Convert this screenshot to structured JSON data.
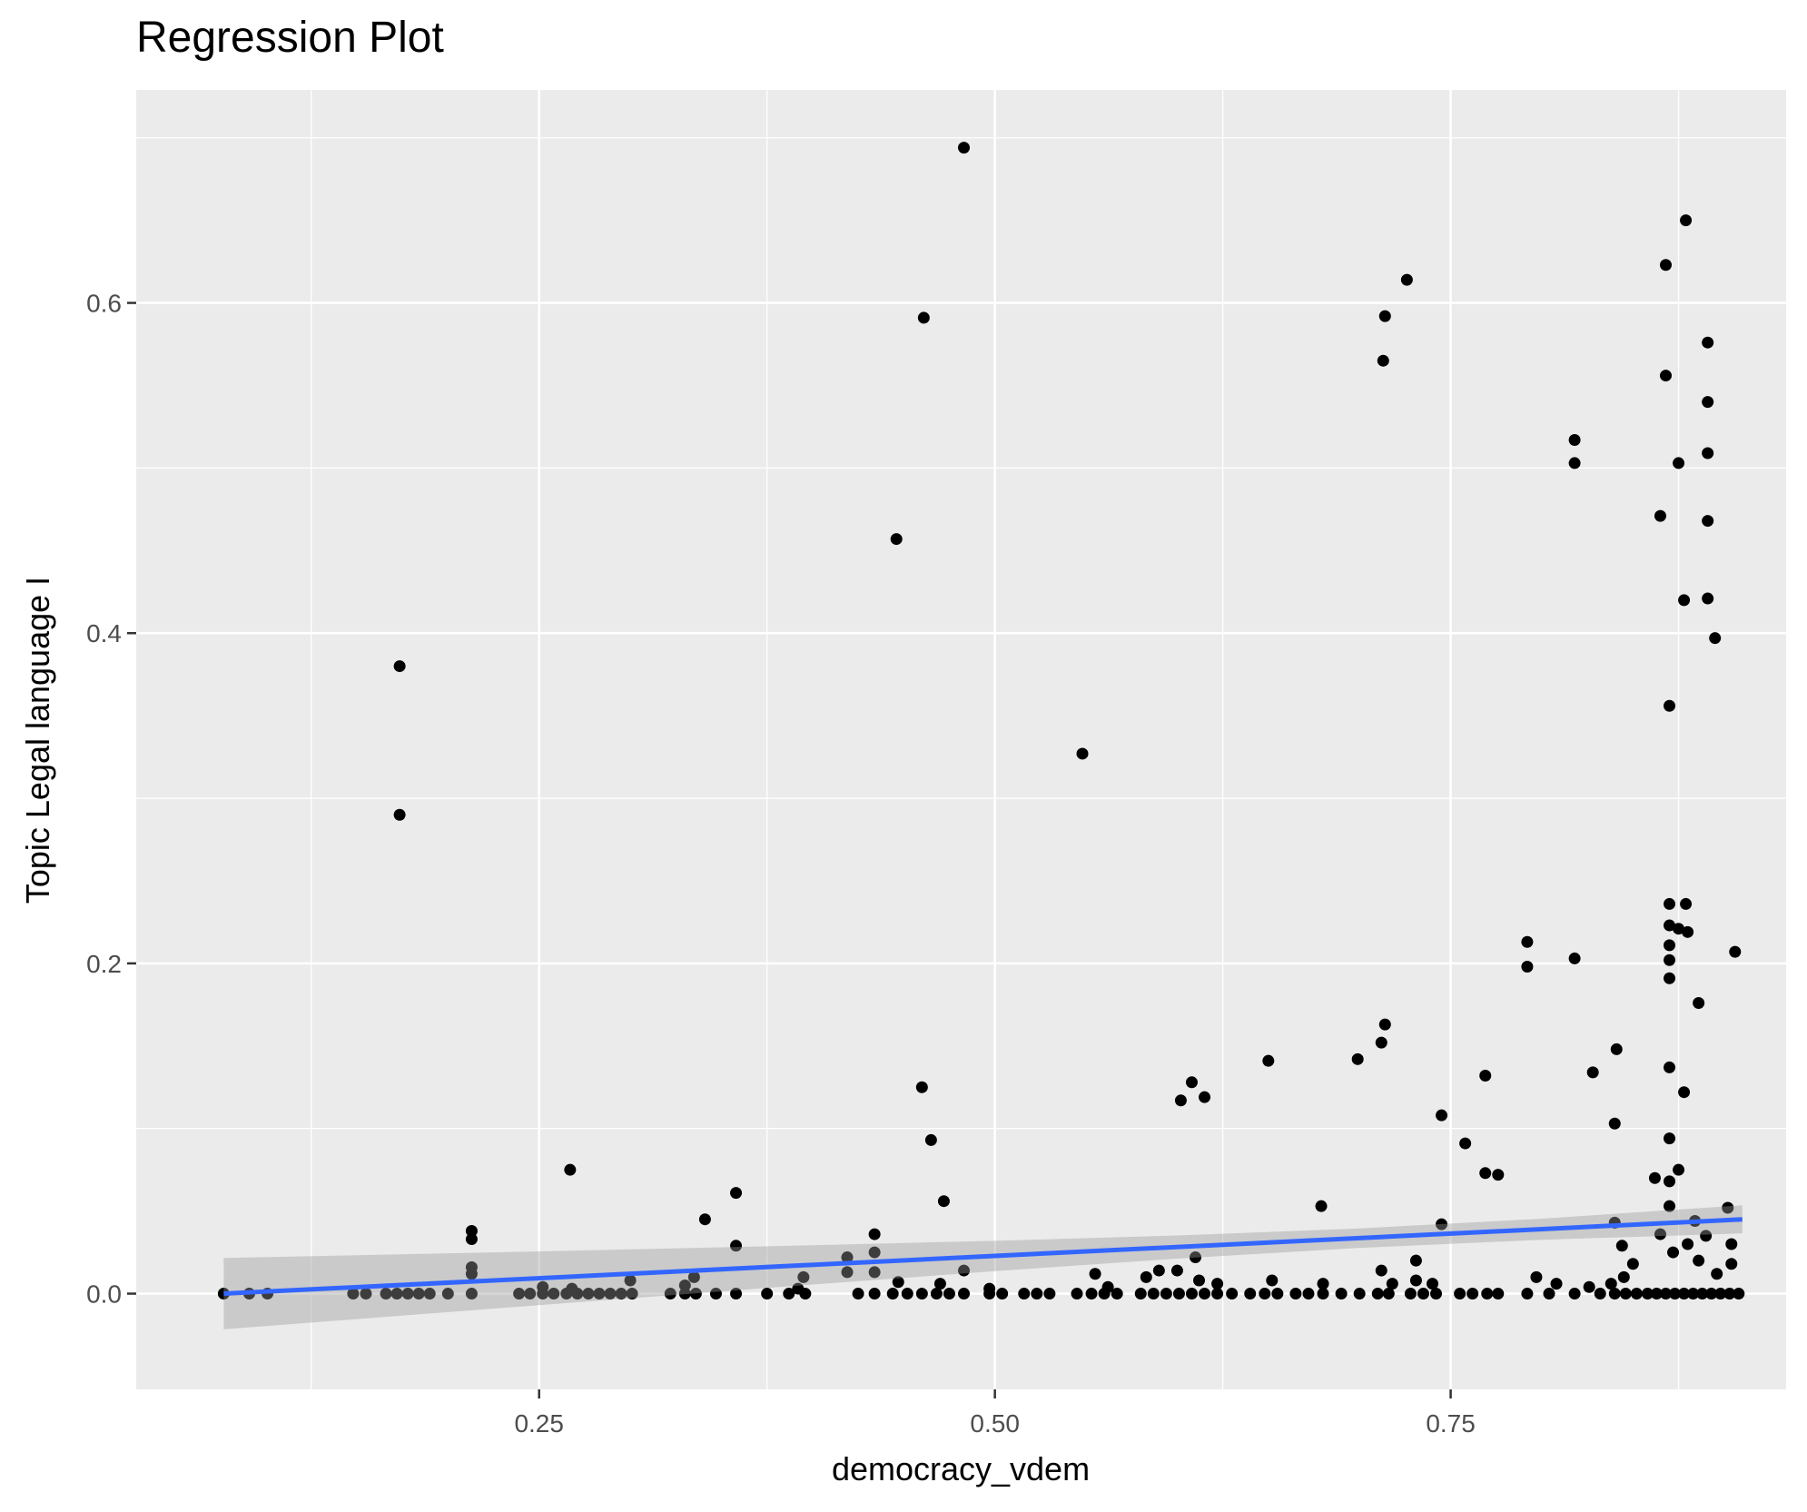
{
  "chart_data": {
    "type": "scatter",
    "title": "Regression Plot",
    "xlabel": "democracy_vdem",
    "ylabel": "Topic Legal language I",
    "xlim": [
      0.029,
      0.934
    ],
    "ylim": [
      -0.058,
      0.729
    ],
    "grid": true,
    "legend": "none",
    "x_ticks": [
      0.25,
      0.5,
      0.75
    ],
    "x_tick_labels": [
      "0.25",
      "0.50",
      "0.75"
    ],
    "y_ticks": [
      0.0,
      0.2,
      0.4,
      0.6
    ],
    "y_tick_labels": [
      "0.0",
      "0.2",
      "0.4",
      "0.6"
    ],
    "colors": {
      "points": "#000000",
      "line": "#3366FF",
      "ribbon": "#999999",
      "panel": "#EBEBEB",
      "grid": "#FFFFFF"
    },
    "points": [
      [
        0.1735,
        0.38
      ],
      [
        0.1735,
        0.29
      ],
      [
        0.483,
        0.694
      ],
      [
        0.461,
        0.591
      ],
      [
        0.446,
        0.457
      ],
      [
        0.548,
        0.327
      ],
      [
        0.46,
        0.125
      ],
      [
        0.465,
        0.093
      ],
      [
        0.472,
        0.056
      ],
      [
        0.483,
        0.014
      ],
      [
        0.267,
        0.075
      ],
      [
        0.213,
        0.038
      ],
      [
        0.213,
        0.033
      ],
      [
        0.213,
        0.016
      ],
      [
        0.213,
        0.012
      ],
      [
        0.341,
        0.045
      ],
      [
        0.358,
        0.061
      ],
      [
        0.358,
        0.029
      ],
      [
        0.395,
        0.01
      ],
      [
        0.419,
        0.022
      ],
      [
        0.419,
        0.013
      ],
      [
        0.434,
        0.036
      ],
      [
        0.434,
        0.025
      ],
      [
        0.434,
        0.013
      ],
      [
        0.447,
        0.007
      ],
      [
        0.47,
        0.006
      ],
      [
        0.3,
        0.008
      ],
      [
        0.33,
        0.005
      ],
      [
        0.335,
        0.01
      ],
      [
        0.602,
        0.117
      ],
      [
        0.608,
        0.128
      ],
      [
        0.615,
        0.119
      ],
      [
        0.65,
        0.141
      ],
      [
        0.679,
        0.053
      ],
      [
        0.699,
        0.142
      ],
      [
        0.713,
        0.565
      ],
      [
        0.714,
        0.592
      ],
      [
        0.726,
        0.614
      ],
      [
        0.714,
        0.163
      ],
      [
        0.712,
        0.152
      ],
      [
        0.745,
        0.108
      ],
      [
        0.758,
        0.091
      ],
      [
        0.769,
        0.132
      ],
      [
        0.769,
        0.073
      ],
      [
        0.776,
        0.072
      ],
      [
        0.745,
        0.042
      ],
      [
        0.792,
        0.213
      ],
      [
        0.792,
        0.198
      ],
      [
        0.818,
        0.517
      ],
      [
        0.818,
        0.503
      ],
      [
        0.818,
        0.203
      ],
      [
        0.828,
        0.134
      ],
      [
        0.841,
        0.148
      ],
      [
        0.84,
        0.103
      ],
      [
        0.84,
        0.043
      ],
      [
        0.844,
        0.029
      ],
      [
        0.862,
        0.07
      ],
      [
        0.865,
        0.471
      ],
      [
        0.868,
        0.623
      ],
      [
        0.868,
        0.556
      ],
      [
        0.87,
        0.356
      ],
      [
        0.87,
        0.236
      ],
      [
        0.87,
        0.223
      ],
      [
        0.87,
        0.211
      ],
      [
        0.87,
        0.202
      ],
      [
        0.87,
        0.191
      ],
      [
        0.87,
        0.137
      ],
      [
        0.87,
        0.094
      ],
      [
        0.87,
        0.068
      ],
      [
        0.87,
        0.053
      ],
      [
        0.879,
        0.65
      ],
      [
        0.875,
        0.503
      ],
      [
        0.878,
        0.42
      ],
      [
        0.879,
        0.236
      ],
      [
        0.88,
        0.219
      ],
      [
        0.875,
        0.221
      ],
      [
        0.878,
        0.122
      ],
      [
        0.875,
        0.075
      ],
      [
        0.886,
        0.176
      ],
      [
        0.891,
        0.576
      ],
      [
        0.891,
        0.54
      ],
      [
        0.891,
        0.509
      ],
      [
        0.891,
        0.468
      ],
      [
        0.891,
        0.421
      ],
      [
        0.895,
        0.397
      ],
      [
        0.906,
        0.207
      ],
      [
        0.902,
        0.052
      ],
      [
        0.884,
        0.044
      ],
      [
        0.89,
        0.035
      ],
      [
        0.88,
        0.03
      ],
      [
        0.865,
        0.036
      ],
      [
        0.872,
        0.025
      ],
      [
        0.886,
        0.02
      ],
      [
        0.896,
        0.012
      ],
      [
        0.904,
        0.03
      ],
      [
        0.904,
        0.018
      ],
      [
        0.85,
        0.018
      ],
      [
        0.845,
        0.01
      ],
      [
        0.838,
        0.006
      ],
      [
        0.826,
        0.004
      ],
      [
        0.797,
        0.01
      ],
      [
        0.808,
        0.006
      ],
      [
        0.731,
        0.02
      ],
      [
        0.731,
        0.008
      ],
      [
        0.712,
        0.014
      ],
      [
        0.718,
        0.006
      ],
      [
        0.74,
        0.006
      ],
      [
        0.68,
        0.006
      ],
      [
        0.652,
        0.008
      ],
      [
        0.6,
        0.014
      ],
      [
        0.61,
        0.022
      ],
      [
        0.612,
        0.008
      ],
      [
        0.622,
        0.006
      ],
      [
        0.583,
        0.01
      ],
      [
        0.59,
        0.014
      ],
      [
        0.555,
        0.012
      ],
      [
        0.562,
        0.004
      ],
      [
        0.497,
        0.003
      ],
      [
        0.392,
        0.003
      ],
      [
        0.252,
        0.004
      ],
      [
        0.268,
        0.003
      ],
      [
        0.077,
        0
      ],
      [
        0.091,
        0
      ],
      [
        0.101,
        0
      ],
      [
        0.148,
        0
      ],
      [
        0.155,
        0
      ],
      [
        0.166,
        0
      ],
      [
        0.172,
        0
      ],
      [
        0.178,
        0
      ],
      [
        0.184,
        0
      ],
      [
        0.19,
        0
      ],
      [
        0.2,
        0
      ],
      [
        0.213,
        0
      ],
      [
        0.239,
        0
      ],
      [
        0.245,
        0
      ],
      [
        0.252,
        0
      ],
      [
        0.258,
        0
      ],
      [
        0.265,
        0
      ],
      [
        0.271,
        0
      ],
      [
        0.277,
        0
      ],
      [
        0.283,
        0
      ],
      [
        0.289,
        0
      ],
      [
        0.295,
        0
      ],
      [
        0.301,
        0
      ],
      [
        0.322,
        0
      ],
      [
        0.33,
        0
      ],
      [
        0.336,
        0
      ],
      [
        0.347,
        0
      ],
      [
        0.358,
        0
      ],
      [
        0.375,
        0
      ],
      [
        0.387,
        0
      ],
      [
        0.396,
        0
      ],
      [
        0.425,
        0
      ],
      [
        0.434,
        0
      ],
      [
        0.444,
        0
      ],
      [
        0.452,
        0
      ],
      [
        0.46,
        0
      ],
      [
        0.468,
        0
      ],
      [
        0.475,
        0
      ],
      [
        0.483,
        0
      ],
      [
        0.497,
        0
      ],
      [
        0.504,
        0
      ],
      [
        0.516,
        0
      ],
      [
        0.523,
        0
      ],
      [
        0.53,
        0
      ],
      [
        0.545,
        0
      ],
      [
        0.553,
        0
      ],
      [
        0.56,
        0
      ],
      [
        0.567,
        0
      ],
      [
        0.58,
        0
      ],
      [
        0.587,
        0
      ],
      [
        0.594,
        0
      ],
      [
        0.601,
        0
      ],
      [
        0.608,
        0
      ],
      [
        0.615,
        0
      ],
      [
        0.622,
        0
      ],
      [
        0.63,
        0
      ],
      [
        0.64,
        0
      ],
      [
        0.648,
        0
      ],
      [
        0.655,
        0
      ],
      [
        0.665,
        0
      ],
      [
        0.672,
        0
      ],
      [
        0.68,
        0
      ],
      [
        0.69,
        0
      ],
      [
        0.7,
        0
      ],
      [
        0.71,
        0
      ],
      [
        0.716,
        0
      ],
      [
        0.728,
        0
      ],
      [
        0.735,
        0
      ],
      [
        0.742,
        0
      ],
      [
        0.755,
        0
      ],
      [
        0.762,
        0
      ],
      [
        0.77,
        0
      ],
      [
        0.776,
        0
      ],
      [
        0.792,
        0
      ],
      [
        0.804,
        0
      ],
      [
        0.818,
        0
      ],
      [
        0.832,
        0
      ],
      [
        0.84,
        0
      ],
      [
        0.846,
        0
      ],
      [
        0.852,
        0
      ],
      [
        0.858,
        0
      ],
      [
        0.863,
        0
      ],
      [
        0.868,
        0
      ],
      [
        0.873,
        0
      ],
      [
        0.878,
        0
      ],
      [
        0.883,
        0
      ],
      [
        0.888,
        0
      ],
      [
        0.893,
        0
      ],
      [
        0.898,
        0
      ],
      [
        0.903,
        0
      ],
      [
        0.908,
        0
      ]
    ],
    "regression_line": {
      "x": [
        0.077,
        0.91
      ],
      "y": [
        0.0,
        0.045
      ]
    },
    "confidence_band": [
      {
        "x": 0.077,
        "ymin": -0.0216,
        "ymax": 0.0216
      },
      {
        "x": 0.2,
        "ymin": -0.0112,
        "ymax": 0.0244
      },
      {
        "x": 0.3,
        "ymin": -0.0028,
        "ymax": 0.0268
      },
      {
        "x": 0.4,
        "ymin": 0.0055,
        "ymax": 0.0293
      },
      {
        "x": 0.5,
        "ymin": 0.0136,
        "ymax": 0.032
      },
      {
        "x": 0.6,
        "ymin": 0.0212,
        "ymax": 0.0352
      },
      {
        "x": 0.7,
        "ymin": 0.0277,
        "ymax": 0.0395
      },
      {
        "x": 0.8,
        "ymin": 0.0326,
        "ymax": 0.0454
      },
      {
        "x": 0.91,
        "ymin": 0.0365,
        "ymax": 0.0535
      }
    ]
  }
}
